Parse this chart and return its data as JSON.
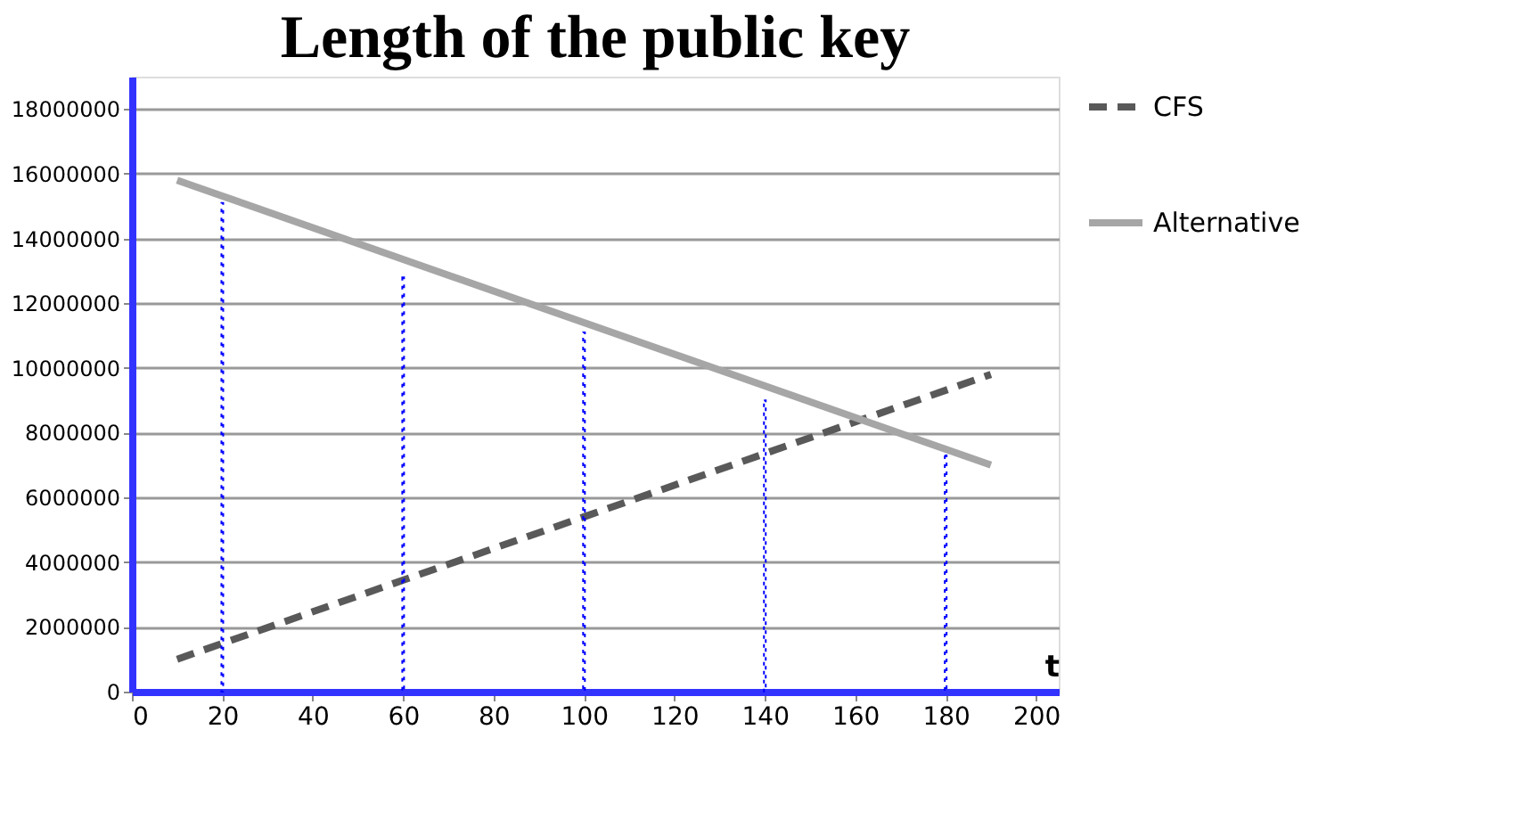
{
  "chart_data": {
    "type": "line",
    "title": "Length of the public key",
    "xlabel": "t",
    "series": [
      {
        "name": "CFS",
        "color": "#595959",
        "line_style": "dashed",
        "x": [
          10,
          190
        ],
        "values": [
          1000000,
          9800000
        ]
      },
      {
        "name": "Alternative",
        "color": "#a6a6a6",
        "line_style": "solid",
        "x": [
          10,
          190
        ],
        "values": [
          15800000,
          7000000
        ]
      },
      {
        "type": "bar",
        "color": "#0000ff",
        "line_style": "dotted",
        "x": [
          20,
          60,
          100,
          140,
          180
        ],
        "values": [
          15100000,
          12800000,
          11100000,
          9000000,
          7300000
        ]
      }
    ],
    "xlim": [
      0,
      205
    ],
    "xticks": [
      0,
      20,
      40,
      60,
      80,
      100,
      120,
      140,
      160,
      180,
      200
    ],
    "ylim": [
      0,
      19000000
    ],
    "yticks": [
      0,
      2000000,
      4000000,
      6000000,
      8000000,
      10000000,
      12000000,
      14000000,
      16000000,
      18000000
    ],
    "grid": "y",
    "legend": "right"
  }
}
